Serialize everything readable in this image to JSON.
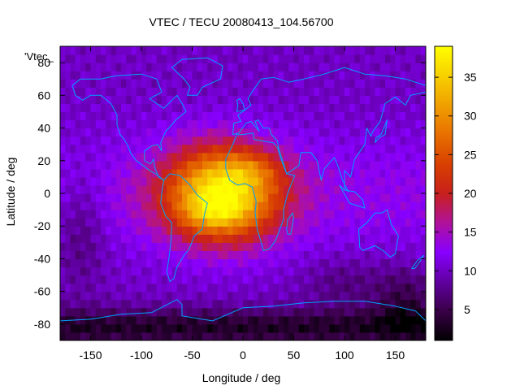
{
  "chart_data": {
    "type": "heatmap",
    "title": "VTEC / TECU 20080413_104.56700",
    "xlabel": "Longitude / deg",
    "ylabel": "Latitude / deg",
    "series_label": "'Vtec_",
    "xlim": [
      -180,
      180
    ],
    "ylim": [
      -90,
      90
    ],
    "xticks": [
      -150,
      -100,
      -50,
      0,
      50,
      100,
      150
    ],
    "yticks": [
      -80,
      -60,
      -40,
      -20,
      0,
      20,
      40,
      60,
      80
    ],
    "colorbar": {
      "min": 1,
      "max": 39,
      "ticks": [
        5,
        10,
        15,
        20,
        25,
        30,
        35
      ],
      "palette": [
        "#000000",
        "#3a0048",
        "#6000a0",
        "#8800ff",
        "#b0129a",
        "#c8201c",
        "#d84000",
        "#e87000",
        "#f0a000",
        "#f8d000",
        "#ffff00"
      ]
    },
    "features": {
      "peak_center_lon_lat": [
        -20,
        0
      ],
      "peak_vtec": 38,
      "background_vtec": 10,
      "low_vtec_regions": [
        "south polar",
        "north pacific"
      ]
    },
    "coastline_color": "#00a0ff"
  }
}
